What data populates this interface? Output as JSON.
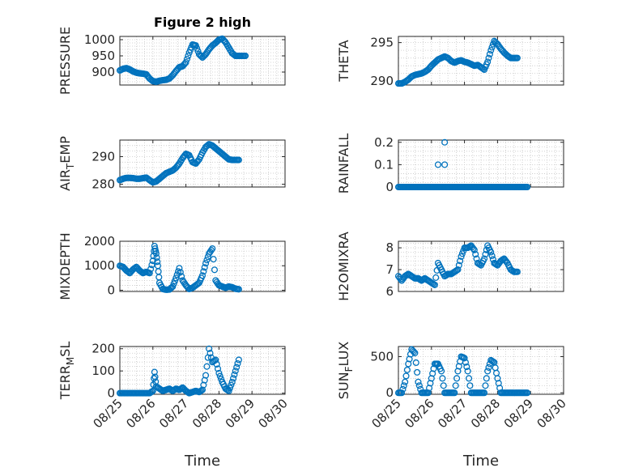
{
  "chart_data": [
    {
      "id": "pressure",
      "type": "scatter",
      "title": "Figure 2 high",
      "ylabel": "PRESSURE",
      "ylabel_sub": "",
      "ylabel_tail": "",
      "ylim": [
        860,
        1010
      ],
      "yticks": [
        900,
        950,
        1000
      ],
      "x": [
        0,
        0.1,
        0.2,
        0.3,
        0.4,
        0.5,
        0.6,
        0.7,
        0.8,
        0.9,
        1.0,
        1.1,
        1.2,
        1.3,
        1.4,
        1.5,
        1.6,
        1.7,
        1.8,
        1.9,
        2.0,
        2.1,
        2.2,
        2.3,
        2.4,
        2.5,
        2.6,
        2.7,
        2.8,
        2.9,
        3.0,
        3.1,
        3.2,
        3.3,
        3.4,
        3.5,
        3.6,
        3.7,
        3.8
      ],
      "y": [
        905,
        910,
        912,
        908,
        902,
        898,
        896,
        895,
        893,
        880,
        872,
        870,
        873,
        875,
        876,
        880,
        890,
        903,
        915,
        918,
        930,
        960,
        985,
        982,
        955,
        945,
        955,
        970,
        982,
        990,
        1000,
        1003,
        992,
        975,
        958,
        950,
        950,
        950,
        950
      ]
    },
    {
      "id": "theta",
      "type": "scatter",
      "ylabel": "THETA",
      "ylabel_sub": "",
      "ylabel_tail": "",
      "ylim": [
        289.5,
        295.8
      ],
      "yticks": [
        290,
        295
      ],
      "x": [
        0,
        0.1,
        0.2,
        0.3,
        0.4,
        0.5,
        0.6,
        0.7,
        0.8,
        0.9,
        1.0,
        1.1,
        1.2,
        1.3,
        1.4,
        1.5,
        1.6,
        1.7,
        1.8,
        1.9,
        2.0,
        2.1,
        2.2,
        2.3,
        2.4,
        2.5,
        2.6,
        2.7,
        2.8,
        2.9,
        3.0,
        3.1,
        3.2,
        3.3,
        3.4,
        3.5,
        3.6
      ],
      "y": [
        289.7,
        289.7,
        289.9,
        290.2,
        290.6,
        290.8,
        290.9,
        291.0,
        291.2,
        291.5,
        292.0,
        292.4,
        292.8,
        293.0,
        293.2,
        293.0,
        292.6,
        292.4,
        292.6,
        292.7,
        292.5,
        292.4,
        292.2,
        292.0,
        292.1,
        291.8,
        291.5,
        292.5,
        294.0,
        295.2,
        294.8,
        294.2,
        293.7,
        293.3,
        293.0,
        293.0,
        293.0
      ]
    },
    {
      "id": "air_temp",
      "type": "scatter",
      "ylabel": "AIR",
      "ylabel_sub": "T",
      "ylabel_tail": "EMP",
      "ylim": [
        279,
        296
      ],
      "yticks": [
        280,
        290
      ],
      "x": [
        0,
        0.1,
        0.2,
        0.3,
        0.4,
        0.5,
        0.6,
        0.7,
        0.8,
        0.9,
        1.0,
        1.1,
        1.2,
        1.3,
        1.4,
        1.5,
        1.6,
        1.7,
        1.8,
        1.9,
        2.0,
        2.1,
        2.2,
        2.3,
        2.4,
        2.5,
        2.6,
        2.7,
        2.8,
        2.9,
        3.0,
        3.1,
        3.2,
        3.3,
        3.4,
        3.5,
        3.6
      ],
      "y": [
        281.5,
        282.0,
        282.3,
        282.3,
        282.2,
        282.0,
        282.0,
        282.2,
        282.4,
        281.5,
        280.7,
        281.0,
        282.0,
        283.0,
        284.0,
        284.5,
        285.0,
        286.0,
        287.5,
        289.5,
        291.0,
        290.5,
        288.0,
        287.5,
        289.0,
        291.5,
        293.5,
        294.5,
        294.0,
        293.0,
        292.0,
        291.0,
        290.0,
        289.0,
        288.8,
        288.8,
        288.8
      ]
    },
    {
      "id": "rainfall",
      "type": "scatter",
      "ylabel": "RAINFALL",
      "ylabel_sub": "",
      "ylabel_tail": "",
      "ylim": [
        0,
        0.21
      ],
      "yticks": [
        0,
        0.1,
        0.2
      ],
      "x": [
        0,
        0.1,
        0.2,
        0.3,
        0.4,
        0.5,
        0.6,
        0.7,
        0.8,
        0.9,
        1.0,
        1.1,
        1.2,
        1.3,
        1.4,
        1.5,
        1.6,
        1.7,
        1.8,
        1.9,
        2.0,
        2.1,
        2.2,
        2.3,
        2.4,
        2.5,
        2.6,
        2.7,
        2.8,
        2.9,
        3.0,
        3.1,
        3.2,
        3.3,
        3.4,
        3.5,
        3.6,
        3.7,
        3.8,
        3.9,
        1.2,
        1.4,
        1.4
      ],
      "y": [
        0,
        0,
        0,
        0,
        0,
        0,
        0,
        0,
        0,
        0,
        0,
        0,
        0,
        0,
        0,
        0,
        0,
        0,
        0,
        0,
        0,
        0,
        0,
        0,
        0,
        0,
        0,
        0,
        0,
        0,
        0,
        0,
        0,
        0,
        0,
        0,
        0,
        0,
        0,
        0,
        0.1,
        0.2,
        0.1
      ]
    },
    {
      "id": "mixdepth",
      "type": "scatter",
      "ylabel": "MIXDEPTH",
      "ylabel_sub": "",
      "ylabel_tail": "",
      "ylim": [
        -50,
        2000
      ],
      "yticks": [
        0,
        1000,
        2000
      ],
      "x": [
        0,
        0.1,
        0.2,
        0.3,
        0.4,
        0.5,
        0.6,
        0.7,
        0.8,
        0.9,
        1.0,
        1.05,
        1.1,
        1.15,
        1.2,
        1.3,
        1.4,
        1.5,
        1.6,
        1.7,
        1.8,
        1.9,
        2.0,
        2.1,
        2.2,
        2.3,
        2.4,
        2.5,
        2.6,
        2.7,
        2.8,
        2.9,
        3.0,
        3.1,
        3.2,
        3.3,
        3.4,
        3.5,
        3.6
      ],
      "y": [
        1000,
        950,
        800,
        700,
        850,
        950,
        800,
        700,
        750,
        700,
        1200,
        1800,
        1500,
        1000,
        300,
        50,
        20,
        30,
        150,
        500,
        900,
        400,
        200,
        50,
        100,
        200,
        300,
        600,
        1100,
        1500,
        1700,
        400,
        200,
        150,
        100,
        150,
        120,
        60,
        40
      ]
    },
    {
      "id": "h2omixra",
      "type": "scatter",
      "ylabel": "H2OMIXRA",
      "ylabel_sub": "",
      "ylabel_tail": "",
      "ylim": [
        6,
        8.3
      ],
      "yticks": [
        6,
        7,
        8
      ],
      "x": [
        0,
        0.1,
        0.2,
        0.3,
        0.4,
        0.5,
        0.6,
        0.7,
        0.8,
        0.9,
        1.0,
        1.1,
        1.2,
        1.3,
        1.4,
        1.5,
        1.6,
        1.7,
        1.8,
        1.9,
        2.0,
        2.1,
        2.2,
        2.3,
        2.4,
        2.5,
        2.6,
        2.7,
        2.8,
        2.9,
        3.0,
        3.1,
        3.2,
        3.3,
        3.4,
        3.5,
        3.6
      ],
      "y": [
        6.7,
        6.5,
        6.7,
        6.8,
        6.7,
        6.6,
        6.6,
        6.5,
        6.6,
        6.5,
        6.4,
        6.3,
        7.3,
        7.0,
        6.7,
        6.8,
        6.8,
        6.9,
        7.0,
        7.6,
        8.0,
        8.0,
        8.1,
        7.9,
        7.3,
        7.2,
        7.5,
        8.1,
        7.8,
        7.3,
        7.2,
        7.4,
        7.5,
        7.3,
        7.0,
        6.9,
        6.9
      ]
    },
    {
      "id": "terr_msl",
      "type": "scatter",
      "ylabel": "TERR",
      "ylabel_sub": "M",
      "ylabel_tail": "SL",
      "ylim": [
        -5,
        210
      ],
      "yticks": [
        0,
        100,
        200
      ],
      "x": [
        0,
        0.1,
        0.2,
        0.3,
        0.4,
        0.5,
        0.6,
        0.7,
        0.8,
        0.9,
        1.0,
        1.05,
        1.1,
        1.2,
        1.3,
        1.4,
        1.5,
        1.6,
        1.7,
        1.8,
        1.9,
        2.0,
        2.1,
        2.2,
        2.3,
        2.4,
        2.5,
        2.6,
        2.7,
        2.8,
        2.9,
        3.0,
        3.1,
        3.2,
        3.3,
        3.4,
        3.5,
        3.6
      ],
      "y": [
        0,
        0,
        0,
        0,
        0,
        0,
        0,
        0,
        0,
        0,
        10,
        95,
        30,
        20,
        10,
        15,
        20,
        10,
        20,
        15,
        25,
        10,
        0,
        5,
        10,
        5,
        15,
        80,
        200,
        140,
        150,
        90,
        50,
        20,
        10,
        50,
        100,
        150
      ]
    },
    {
      "id": "sun_flux",
      "type": "scatter",
      "ylabel": "SUN",
      "ylabel_sub": "F",
      "ylabel_tail": "LUX",
      "ylim": [
        -20,
        640
      ],
      "yticks": [
        0,
        500
      ],
      "x": [
        0,
        0.1,
        0.2,
        0.3,
        0.4,
        0.5,
        0.6,
        0.7,
        0.8,
        0.9,
        1.0,
        1.1,
        1.2,
        1.3,
        1.4,
        1.5,
        1.6,
        1.7,
        1.8,
        1.9,
        2.0,
        2.1,
        2.2,
        2.3,
        2.4,
        2.5,
        2.6,
        2.7,
        2.8,
        2.9,
        3.0,
        3.1,
        3.2,
        3.3,
        3.4,
        3.5,
        3.6,
        3.7,
        3.8,
        3.9
      ],
      "y": [
        0,
        0,
        150,
        400,
        600,
        550,
        150,
        0,
        0,
        0,
        200,
        400,
        400,
        300,
        0,
        0,
        0,
        0,
        300,
        500,
        480,
        300,
        0,
        0,
        0,
        0,
        0,
        300,
        450,
        420,
        200,
        0,
        0,
        0,
        0,
        0,
        0,
        0,
        0,
        0
      ]
    }
  ],
  "xticks": [
    "08/25",
    "08/26",
    "08/27",
    "08/28",
    "08/29",
    "08/30"
  ],
  "xlabel_left": "Time",
  "xlabel_right": "Time",
  "colors": {
    "marker": "#0072BD",
    "axis": "#262626",
    "grid": "#c8c8c8"
  }
}
